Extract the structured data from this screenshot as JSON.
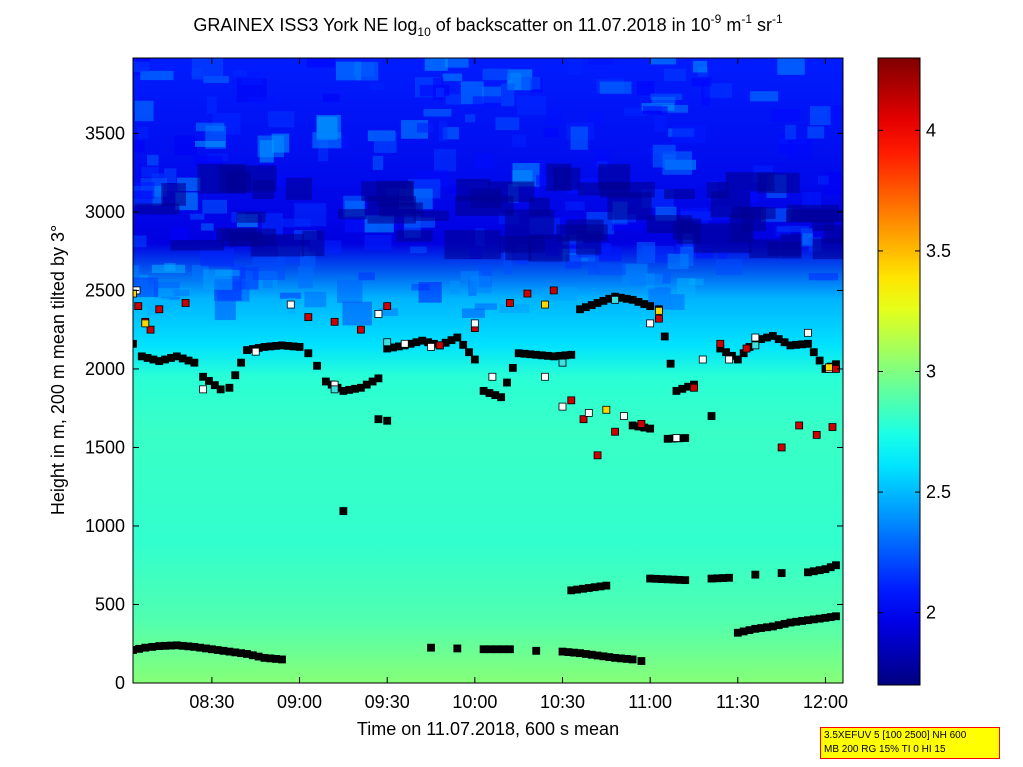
{
  "chart_data": {
    "type": "heatmap",
    "title_parts": {
      "prefix": "GRAINEX ISS3 York NE log",
      "log_sub": "10",
      "mid": " of backscatter on 11.07.2018 in 10",
      "exp1": "-9",
      "unit1": " m",
      "exp2": "-1",
      "unit2": " sr",
      "exp3": "-1"
    },
    "xlabel": "Time on 11.07.2018, 600 s mean",
    "ylabel": "Height in m, 200 m mean tilted by 3°",
    "x_unit": "hours",
    "xlim": [
      8.05,
      12.1
    ],
    "ylim": [
      0,
      3980
    ],
    "xticks": [
      {
        "value": 8.5,
        "label": "08:30"
      },
      {
        "value": 9.0,
        "label": "09:00"
      },
      {
        "value": 9.5,
        "label": "09:30"
      },
      {
        "value": 10.0,
        "label": "10:00"
      },
      {
        "value": 10.5,
        "label": "10:30"
      },
      {
        "value": 11.0,
        "label": "11:00"
      },
      {
        "value": 11.5,
        "label": "11:30"
      },
      {
        "value": 12.0,
        "label": "12:00"
      }
    ],
    "yticks": [
      {
        "value": 0,
        "label": "0"
      },
      {
        "value": 500,
        "label": "500"
      },
      {
        "value": 1000,
        "label": "1000"
      },
      {
        "value": 1500,
        "label": "1500"
      },
      {
        "value": 2000,
        "label": "2000"
      },
      {
        "value": 2500,
        "label": "2500"
      },
      {
        "value": 3000,
        "label": "3000"
      },
      {
        "value": 3500,
        "label": "3500"
      }
    ],
    "colorbar": {
      "colormap": "jet",
      "clim": [
        1.7,
        4.3
      ],
      "ticks": [
        {
          "value": 2,
          "label": "2"
        },
        {
          "value": 2.5,
          "label": "2.5"
        },
        {
          "value": 3,
          "label": "3"
        },
        {
          "value": 3.5,
          "label": "3.5"
        },
        {
          "value": 4,
          "label": "4"
        }
      ]
    },
    "field_profile": [
      {
        "height": 0,
        "value": 3.02
      },
      {
        "height": 400,
        "value": 2.88
      },
      {
        "height": 900,
        "value": 2.8
      },
      {
        "height": 1600,
        "value": 2.82
      },
      {
        "height": 1950,
        "value": 2.78
      },
      {
        "height": 2150,
        "value": 2.6
      },
      {
        "height": 2450,
        "value": 2.48
      },
      {
        "height": 2800,
        "value": 1.95
      },
      {
        "height": 3980,
        "value": 2.1
      }
    ],
    "detection_layers": [
      {
        "color": "#000000",
        "points": [
          [
            8.05,
            210
          ],
          [
            8.12,
            225
          ],
          [
            8.2,
            235
          ],
          [
            8.3,
            240
          ],
          [
            8.4,
            230
          ],
          [
            8.5,
            215
          ],
          [
            8.6,
            200
          ],
          [
            8.7,
            185
          ],
          [
            8.8,
            160
          ],
          [
            8.9,
            150
          ],
          [
            9.75,
            225
          ],
          [
            9.9,
            220
          ],
          [
            10.05,
            215
          ],
          [
            10.2,
            215
          ],
          [
            10.35,
            205
          ],
          [
            10.5,
            200
          ],
          [
            10.6,
            190
          ],
          [
            10.7,
            175
          ],
          [
            10.8,
            160
          ],
          [
            10.9,
            150
          ],
          [
            10.95,
            140
          ]
        ]
      },
      {
        "color": "#000000",
        "points": [
          [
            11.5,
            320
          ],
          [
            11.6,
            345
          ],
          [
            11.7,
            360
          ],
          [
            11.8,
            385
          ],
          [
            11.9,
            400
          ],
          [
            12.0,
            415
          ],
          [
            12.06,
            425
          ]
        ]
      },
      {
        "color": "#000000",
        "points": [
          [
            10.55,
            590
          ],
          [
            10.65,
            605
          ],
          [
            10.75,
            620
          ],
          [
            11.0,
            665
          ],
          [
            11.1,
            660
          ],
          [
            11.2,
            655
          ],
          [
            11.35,
            665
          ],
          [
            11.45,
            670
          ],
          [
            11.6,
            690
          ],
          [
            11.75,
            700
          ],
          [
            11.9,
            705
          ],
          [
            12.0,
            725
          ],
          [
            12.06,
            750
          ]
        ]
      },
      {
        "color": "#000000",
        "points": [
          [
            9.25,
            1095
          ],
          [
            9.45,
            1680
          ],
          [
            9.5,
            1670
          ],
          [
            11.1,
            1555
          ],
          [
            11.2,
            1560
          ],
          [
            11.35,
            1700
          ],
          [
            11.0,
            1620
          ],
          [
            10.9,
            1640
          ]
        ]
      },
      {
        "color": "#000000",
        "points": [
          [
            8.05,
            2160
          ],
          [
            8.1,
            2080
          ],
          [
            8.2,
            2050
          ],
          [
            8.3,
            2080
          ],
          [
            8.4,
            2040
          ],
          [
            8.45,
            1950
          ],
          [
            8.55,
            1870
          ],
          [
            8.6,
            1880
          ],
          [
            8.7,
            2120
          ],
          [
            8.8,
            2140
          ],
          [
            8.9,
            2150
          ],
          [
            9.0,
            2140
          ],
          [
            9.05,
            2100
          ],
          [
            9.1,
            2020
          ],
          [
            9.15,
            1920
          ],
          [
            9.25,
            1860
          ],
          [
            9.35,
            1880
          ],
          [
            9.45,
            1940
          ],
          [
            9.5,
            2130
          ],
          [
            9.6,
            2150
          ],
          [
            9.7,
            2180
          ],
          [
            9.8,
            2150
          ],
          [
            9.9,
            2200
          ],
          [
            10.0,
            2060
          ],
          [
            10.05,
            1860
          ],
          [
            10.15,
            1820
          ],
          [
            10.25,
            2100
          ],
          [
            10.35,
            2090
          ],
          [
            10.45,
            2080
          ],
          [
            10.55,
            2090
          ],
          [
            10.6,
            2380
          ],
          [
            10.7,
            2420
          ],
          [
            10.8,
            2460
          ],
          [
            10.9,
            2440
          ],
          [
            11.0,
            2400
          ],
          [
            11.05,
            2380
          ],
          [
            11.15,
            1860
          ],
          [
            11.25,
            1900
          ],
          [
            11.4,
            2130
          ],
          [
            11.5,
            2060
          ],
          [
            11.6,
            2180
          ],
          [
            11.7,
            2210
          ],
          [
            11.8,
            2150
          ],
          [
            11.9,
            2160
          ],
          [
            12.0,
            2000
          ],
          [
            12.06,
            2030
          ]
        ]
      },
      {
        "color": "#cc0000",
        "points": [
          [
            8.08,
            2400
          ],
          [
            8.12,
            2300
          ],
          [
            8.15,
            2250
          ],
          [
            8.2,
            2380
          ],
          [
            8.35,
            2420
          ],
          [
            9.05,
            2330
          ],
          [
            9.2,
            2300
          ],
          [
            9.35,
            2250
          ],
          [
            9.5,
            2400
          ],
          [
            9.8,
            2150
          ],
          [
            10.0,
            2260
          ],
          [
            10.2,
            2420
          ],
          [
            10.3,
            2480
          ],
          [
            10.45,
            2500
          ],
          [
            10.55,
            1800
          ],
          [
            10.62,
            1680
          ],
          [
            10.7,
            1450
          ],
          [
            10.8,
            1600
          ],
          [
            10.95,
            1650
          ],
          [
            11.05,
            2320
          ],
          [
            11.25,
            1880
          ],
          [
            11.4,
            2160
          ],
          [
            11.55,
            2130
          ],
          [
            11.75,
            1500
          ],
          [
            11.85,
            1640
          ],
          [
            11.95,
            1580
          ],
          [
            12.04,
            1630
          ],
          [
            12.06,
            2000
          ]
        ]
      },
      {
        "color": "#ffffff",
        "points": [
          [
            8.07,
            2500
          ],
          [
            8.45,
            1870
          ],
          [
            8.75,
            2110
          ],
          [
            8.95,
            2410
          ],
          [
            9.2,
            1900
          ],
          [
            9.45,
            2350
          ],
          [
            9.6,
            2160
          ],
          [
            9.75,
            2140
          ],
          [
            10.0,
            2290
          ],
          [
            10.1,
            1950
          ],
          [
            10.4,
            1950
          ],
          [
            10.5,
            1760
          ],
          [
            10.65,
            1720
          ],
          [
            10.85,
            1700
          ],
          [
            11.0,
            2290
          ],
          [
            11.15,
            1560
          ],
          [
            11.3,
            2060
          ],
          [
            11.45,
            2060
          ],
          [
            11.6,
            2200
          ],
          [
            11.9,
            2230
          ],
          [
            12.02,
            2000
          ]
        ]
      },
      {
        "color": "#ffd400",
        "points": [
          [
            8.05,
            2480
          ],
          [
            8.12,
            2290
          ],
          [
            10.4,
            2410
          ],
          [
            10.75,
            1740
          ],
          [
            11.05,
            2370
          ],
          [
            12.02,
            2010
          ]
        ]
      },
      {
        "color": "#40e0e0",
        "points": [
          [
            9.2,
            1870
          ],
          [
            9.5,
            2170
          ],
          [
            10.5,
            2040
          ],
          [
            10.8,
            2440
          ],
          [
            11.6,
            2150
          ]
        ]
      }
    ]
  },
  "info_box": {
    "line1": "3.5XEFUV 5 [100 2500] NH 600",
    "line2": "MB 200 RG 15% TI 0 HI 15"
  }
}
